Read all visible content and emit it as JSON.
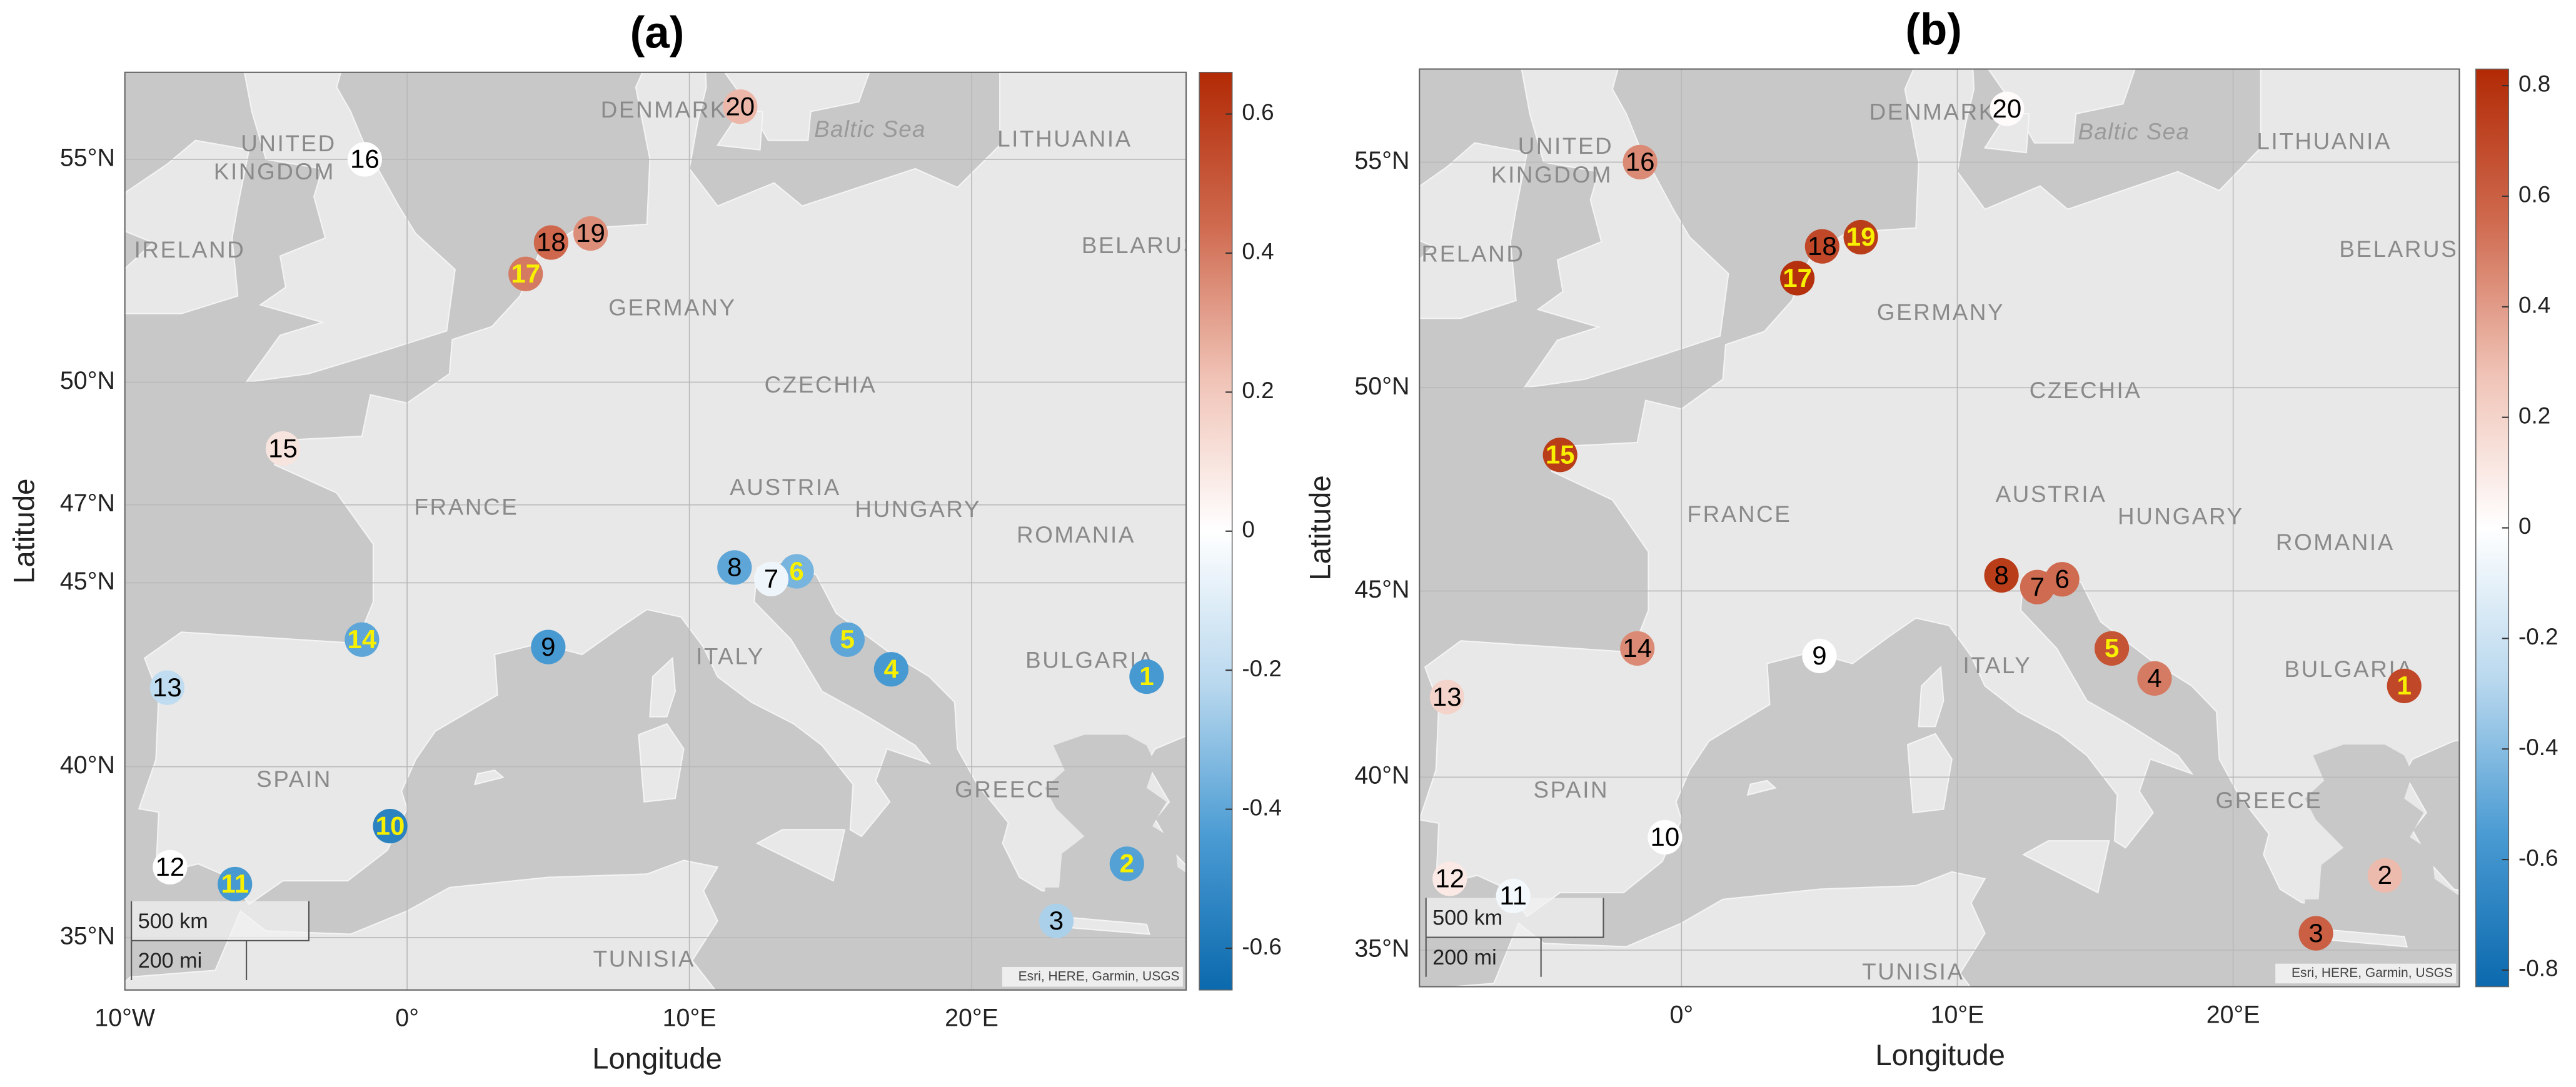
{
  "stations": {
    "labels": [
      "1",
      "2",
      "3",
      "4",
      "5",
      "6",
      "7",
      "8",
      "9",
      "10",
      "11",
      "12",
      "13",
      "14",
      "15",
      "16",
      "17",
      "18",
      "19",
      "20"
    ],
    "lon": [
      26.2,
      25.5,
      23.0,
      17.15,
      15.6,
      13.8,
      12.9,
      11.6,
      5.0,
      -0.6,
      -6.1,
      -8.4,
      -8.5,
      -1.6,
      -4.4,
      -1.5,
      4.2,
      5.1,
      6.5,
      11.8
    ],
    "lat": [
      42.5,
      37.2,
      35.5,
      42.7,
      43.5,
      45.3,
      45.1,
      45.4,
      43.3,
      38.3,
      36.6,
      37.1,
      42.2,
      43.5,
      48.4,
      55.0,
      52.5,
      53.2,
      53.4,
      56.1
    ]
  },
  "colormap": [
    "#0b69ad",
    "#4a9bd3",
    "#b9d8ee",
    "#ffffff",
    "#f0c3b6",
    "#cf6a4f",
    "#b22a05"
  ],
  "map_labels": [
    "UNITED",
    "KINGDOM",
    "IRELAND",
    "DENMARK",
    "Baltic Sea",
    "LITHUANIA",
    "BELARUS",
    "GERMANY",
    "CZECHIA",
    "FRANCE",
    "AUSTRIA",
    "HUNGARY",
    "ROMANIA",
    "ITALY",
    "BULGARIA",
    "SPAIN",
    "GREECE",
    "TUNISIA"
  ],
  "scale_labels": [
    "500 km",
    "200 mi"
  ],
  "attribution": "Esri, HERE, Garmin, USGS",
  "panels": [
    {
      "title": "(a)",
      "xlabel": "Longitude",
      "ylabel": "Latitude",
      "xlim": [
        -10,
        27.6
      ],
      "ylim": [
        33.4,
        56.8
      ],
      "xticks": [
        {
          "value": -10,
          "label": "10°W"
        },
        {
          "value": 0,
          "label": "0°"
        },
        {
          "value": 10,
          "label": "10°E"
        },
        {
          "value": 20,
          "label": "20°E"
        }
      ],
      "yticks": [
        {
          "value": 35,
          "label": "35°N"
        },
        {
          "value": 40,
          "label": "40°N"
        },
        {
          "value": 45,
          "label": "45°N"
        },
        {
          "value": 47,
          "label": "47°N"
        },
        {
          "value": 50,
          "label": "50°N"
        },
        {
          "value": 55,
          "label": "55°N"
        }
      ],
      "clim": [
        -0.66,
        0.66
      ],
      "cticks": [
        0.6,
        0.4,
        0.2,
        0,
        -0.2,
        -0.4,
        -0.6
      ],
      "values": [
        -0.45,
        -0.42,
        -0.25,
        -0.45,
        -0.4,
        -0.35,
        -0.05,
        -0.4,
        -0.45,
        -0.55,
        -0.45,
        0.0,
        -0.2,
        -0.4,
        0.1,
        0.0,
        0.4,
        0.45,
        0.35,
        0.25
      ],
      "label_colors": [
        "#f7f000",
        "#f7f000",
        "#000000",
        "#f7f000",
        "#f7f000",
        "#f7f000",
        "#000000",
        "#000000",
        "#000000",
        "#f7f000",
        "#f7f000",
        "#000000",
        "#000000",
        "#f7f000",
        "#000000",
        "#000000",
        "#f7f000",
        "#000000",
        "#000000",
        "#000000"
      ]
    },
    {
      "title": "(b)",
      "xlabel": "Longitude",
      "ylabel": "Latitude",
      "xlim": [
        -9.5,
        28.2
      ],
      "ylim": [
        33.9,
        56.9
      ],
      "xticks": [
        {
          "value": 0,
          "label": "0°"
        },
        {
          "value": 10,
          "label": "10°E"
        },
        {
          "value": 20,
          "label": "20°E"
        }
      ],
      "yticks": [
        {
          "value": 35,
          "label": "35°N"
        },
        {
          "value": 40,
          "label": "40°N"
        },
        {
          "value": 45,
          "label": "45°N"
        },
        {
          "value": 50,
          "label": "50°N"
        },
        {
          "value": 55,
          "label": "55°N"
        }
      ],
      "clim": [
        -0.83,
        0.83
      ],
      "cticks": [
        0.8,
        0.6,
        0.4,
        0.2,
        0,
        -0.2,
        -0.4,
        -0.6,
        -0.8
      ],
      "values": [
        0.7,
        0.3,
        0.6,
        0.5,
        0.65,
        0.55,
        0.55,
        0.75,
        0.0,
        0.0,
        -0.05,
        0.1,
        0.2,
        0.45,
        0.75,
        0.45,
        0.8,
        0.7,
        0.75,
        0.02
      ],
      "label_colors": [
        "#f7f000",
        "#000000",
        "#000000",
        "#000000",
        "#f7f000",
        "#000000",
        "#000000",
        "#000000",
        "#000000",
        "#000000",
        "#000000",
        "#000000",
        "#000000",
        "#000000",
        "#f7f000",
        "#000000",
        "#f7f000",
        "#000000",
        "#f7f000",
        "#000000"
      ]
    }
  ]
}
